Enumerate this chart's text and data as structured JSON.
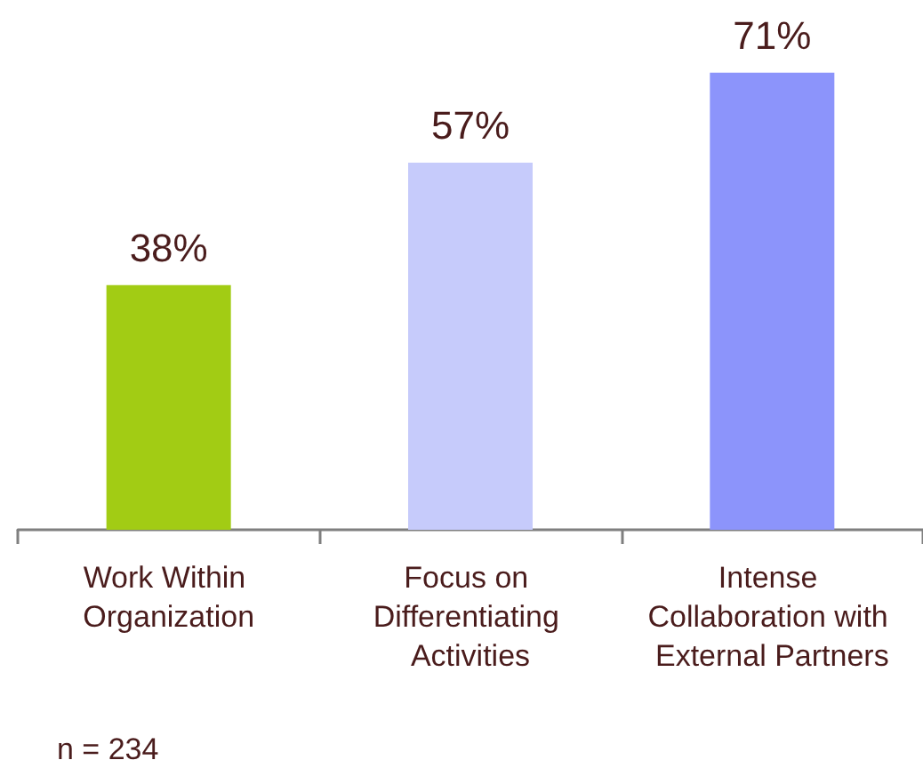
{
  "chart_data": {
    "type": "bar",
    "categories": [
      "Work Within Organization",
      "Focus on Differentiating Activities",
      "Intense Collaboration with External Partners"
    ],
    "values": [
      38,
      57,
      71
    ],
    "colors": [
      "#a2cc14",
      "#c6cbfb",
      "#8c94fb"
    ],
    "data_labels": true,
    "value_labels": [
      "38%",
      "57%",
      "71%"
    ],
    "annotations": [
      "n = 234"
    ]
  }
}
